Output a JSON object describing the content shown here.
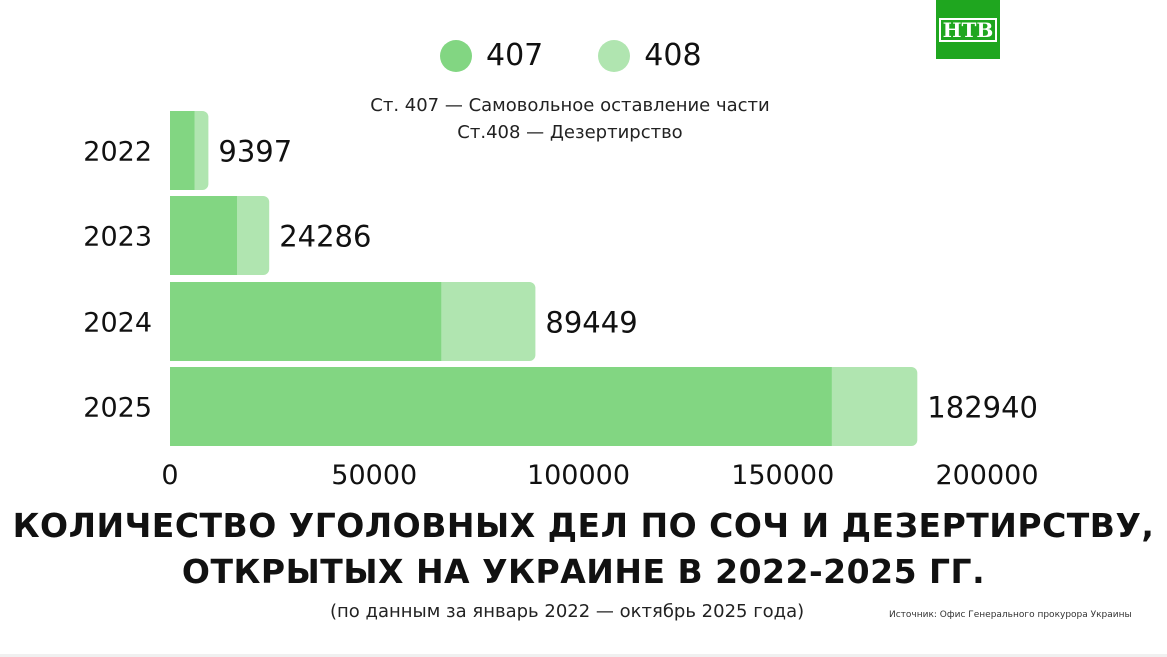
{
  "logo": {
    "text": "НТВ",
    "color": "#1fa61f"
  },
  "chart_data": {
    "type": "bar",
    "orientation": "horizontal",
    "stacked": true,
    "categories": [
      "2022",
      "2023",
      "2024",
      "2025"
    ],
    "series": [
      {
        "name": "407",
        "color": "#82d682",
        "values": [
          6000,
          16400,
          66400,
          162000
        ]
      },
      {
        "name": "408",
        "color": "#b0e5b0",
        "values": [
          3397,
          7886,
          23049,
          20940
        ]
      }
    ],
    "totals": [
      "9397",
      "24286",
      "89449",
      "182940"
    ],
    "xlim": [
      0,
      200000
    ],
    "xticks": [
      "0",
      "50000",
      "100000",
      "150000",
      "200000"
    ],
    "grid": false,
    "legend_position": "top",
    "notes": [
      "Ст. 407 — Самовольное оставление части",
      "Ст.408 — Дезертирство"
    ],
    "title": [
      "КОЛИЧЕСТВО УГОЛОВНЫХ ДЕЛ ПО СОЧ И ДЕЗЕРТИРСТВУ,",
      "ОТКРЫТЫХ НА УКРАИНЕ В 2022-2025 ГГ."
    ],
    "subtitle": "(по данным за январь 2022 — октябрь 2025 года)",
    "source": "Источник: Офис Генерального прокурора Украины"
  }
}
